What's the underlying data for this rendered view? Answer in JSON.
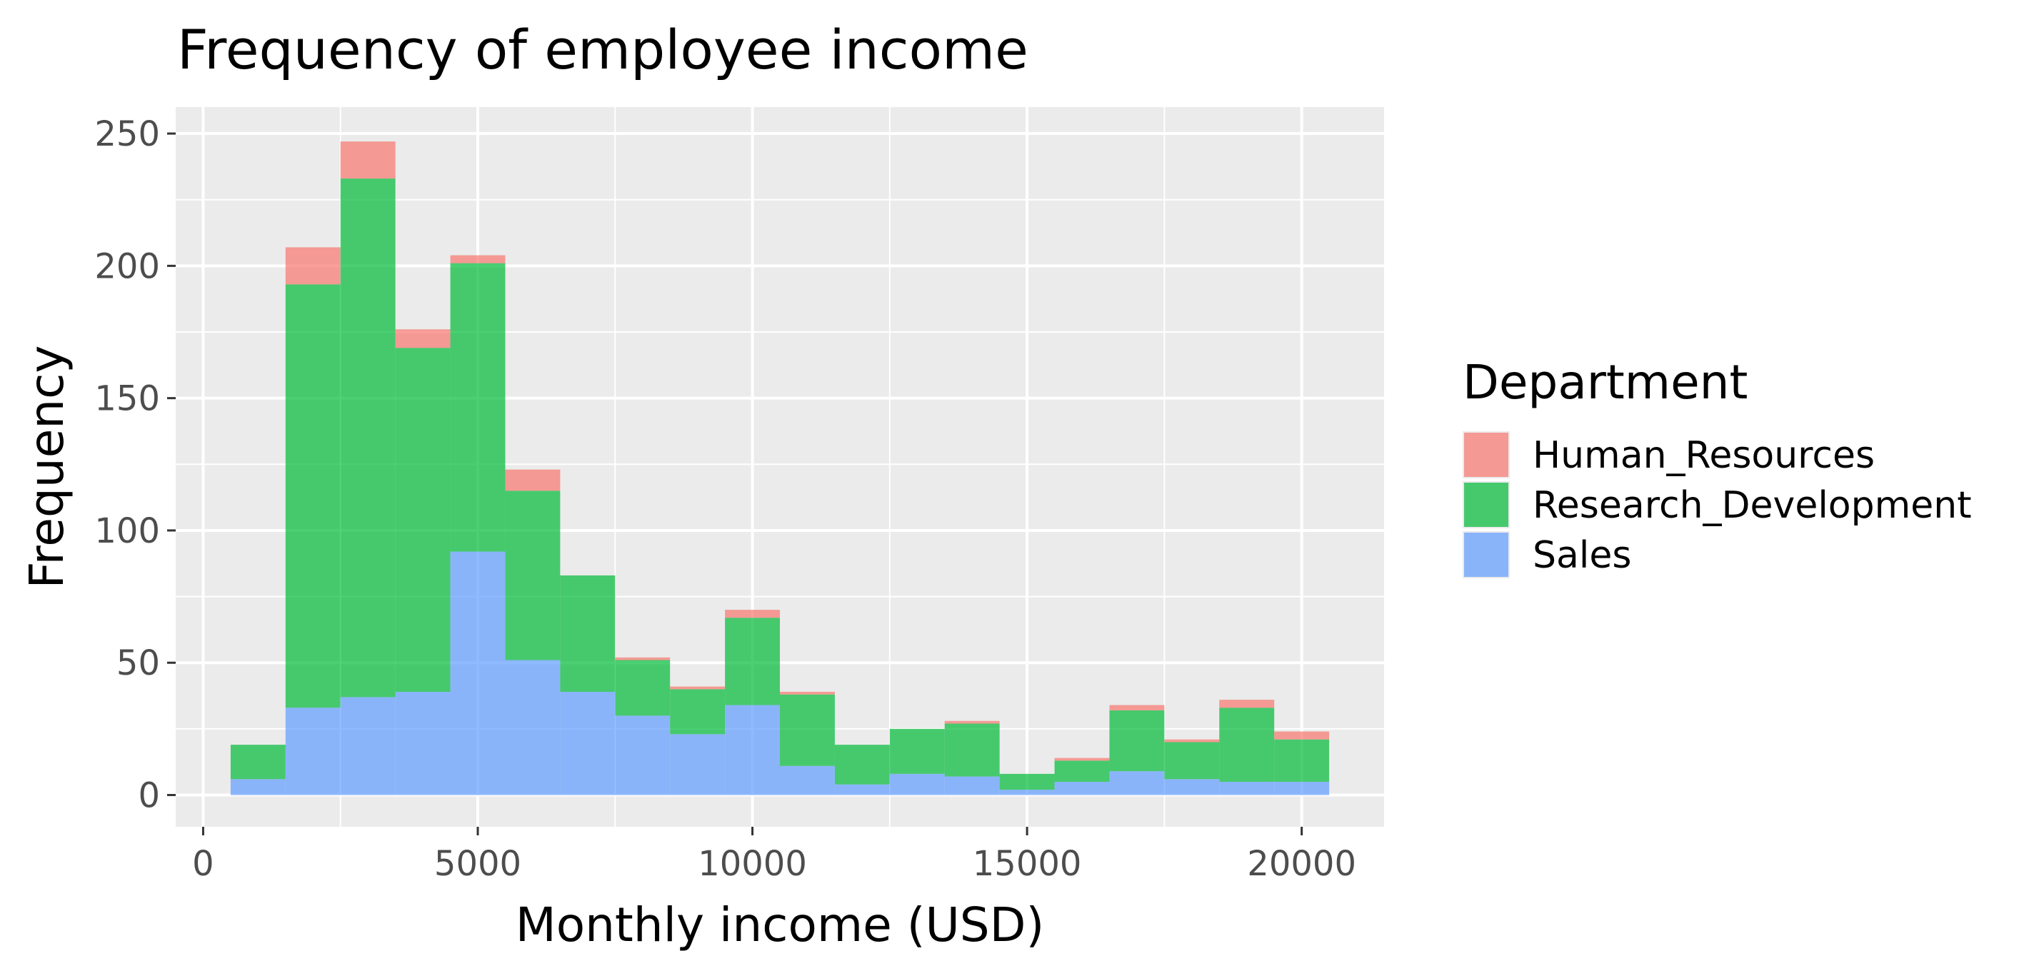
{
  "chart_data": {
    "type": "bar",
    "subtype": "stacked-histogram",
    "title": "Frequency of employee income",
    "xlabel": "Monthly income (USD)",
    "ylabel": "Frequency",
    "xlim": [
      -500,
      21500
    ],
    "ylim": [
      -12,
      260
    ],
    "xticks": [
      0,
      5000,
      10000,
      15000,
      20000
    ],
    "yticks": [
      0,
      50,
      100,
      150,
      200,
      250
    ],
    "grid": true,
    "bin_width": 1000,
    "bins": [
      [
        500,
        1500
      ],
      [
        1500,
        2500
      ],
      [
        2500,
        3500
      ],
      [
        3500,
        4500
      ],
      [
        4500,
        5500
      ],
      [
        5500,
        6500
      ],
      [
        6500,
        7500
      ],
      [
        7500,
        8500
      ],
      [
        8500,
        9500
      ],
      [
        9500,
        10500
      ],
      [
        10500,
        11500
      ],
      [
        11500,
        12500
      ],
      [
        12500,
        13500
      ],
      [
        13500,
        14500
      ],
      [
        14500,
        15500
      ],
      [
        15500,
        16500
      ],
      [
        16500,
        17500
      ],
      [
        17500,
        18500
      ],
      [
        18500,
        19500
      ],
      [
        19500,
        20500
      ]
    ],
    "legend": {
      "title": "Department",
      "position": "right"
    },
    "series": [
      {
        "name": "Sales",
        "color": "#619CFF",
        "values": [
          6,
          33,
          37,
          39,
          92,
          51,
          39,
          30,
          23,
          34,
          11,
          4,
          8,
          7,
          2,
          5,
          9,
          6,
          5,
          5
        ]
      },
      {
        "name": "Research_Development",
        "color": "#00BA38",
        "values": [
          13,
          160,
          196,
          130,
          109,
          64,
          44,
          21,
          17,
          33,
          27,
          15,
          17,
          20,
          6,
          8,
          23,
          14,
          28,
          16
        ]
      },
      {
        "name": "Human_Resources",
        "color": "#F8766D",
        "values": [
          0,
          14,
          14,
          7,
          3,
          8,
          0,
          1,
          1,
          3,
          1,
          0,
          0,
          1,
          0,
          1,
          2,
          1,
          3,
          3
        ]
      }
    ],
    "legend_order": [
      "Human_Resources",
      "Research_Development",
      "Sales"
    ]
  }
}
